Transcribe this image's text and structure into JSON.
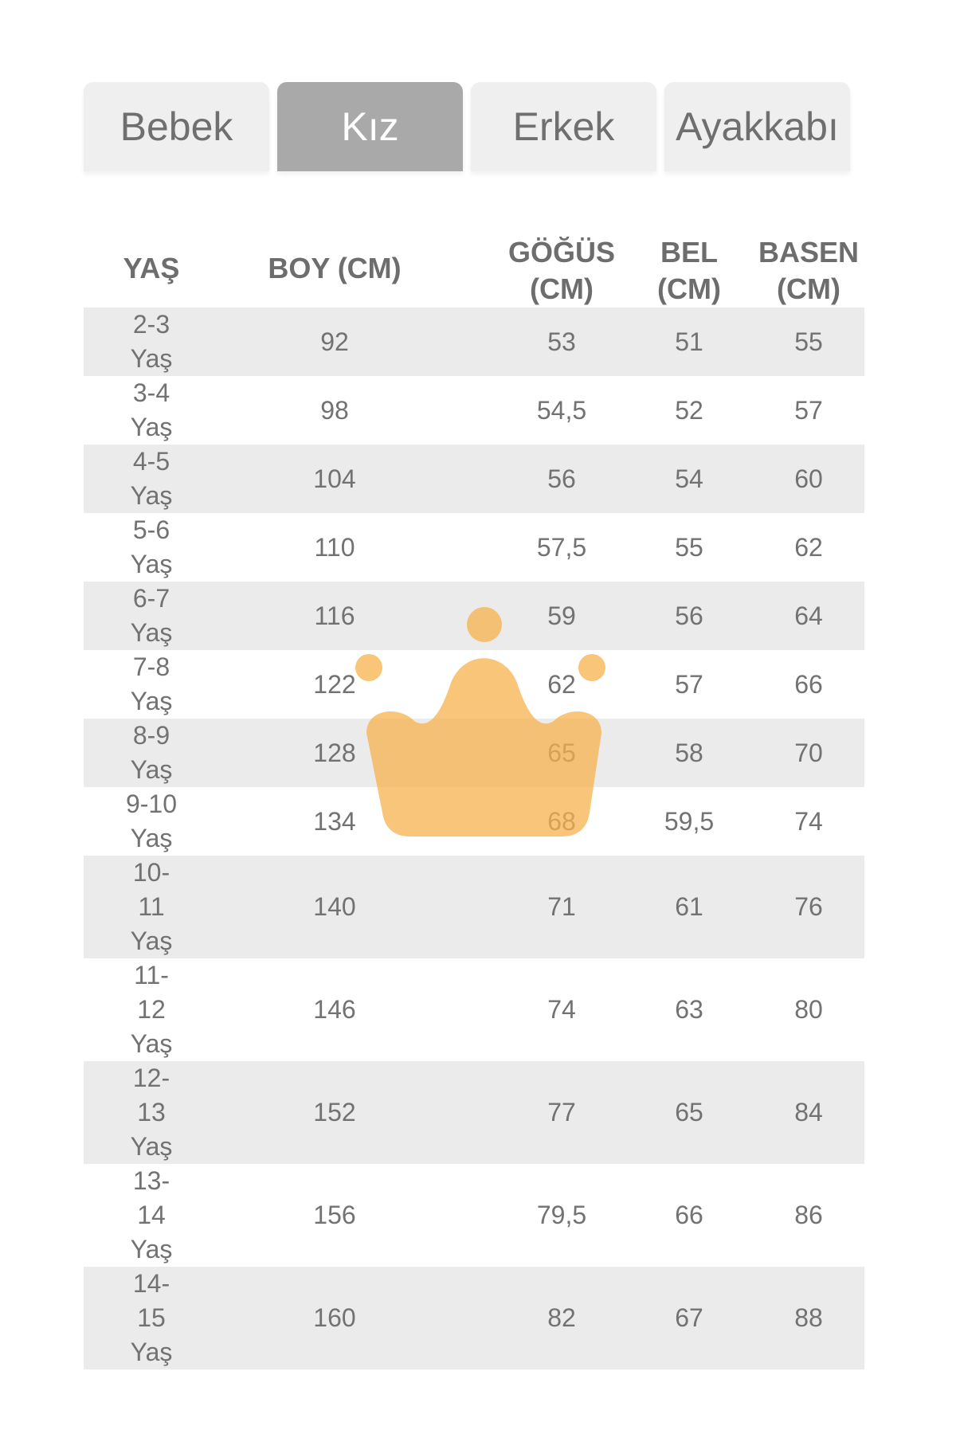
{
  "tabs": [
    {
      "label": "Bebek",
      "active": false
    },
    {
      "label": "Kız",
      "active": true
    },
    {
      "label": "Erkek",
      "active": false
    },
    {
      "label": "Ayakkabı",
      "active": false
    }
  ],
  "table": {
    "headers": {
      "yas": "YAŞ",
      "boy": "BOY (CM)",
      "gogus_line1": "GÖĞÜS",
      "gogus_line2": "(CM)",
      "bel_line1": "BEL",
      "bel_line2": "(CM)",
      "basen_line1": "BASEN",
      "basen_line2": "(CM)"
    },
    "rows": [
      {
        "age_lines": [
          "2-3",
          "Yaş"
        ],
        "boy": "92",
        "gogus": "53",
        "bel": "51",
        "basen": "55"
      },
      {
        "age_lines": [
          "3-4",
          "Yaş"
        ],
        "boy": "98",
        "gogus": "54,5",
        "bel": "52",
        "basen": "57"
      },
      {
        "age_lines": [
          "4-5",
          "Yaş"
        ],
        "boy": "104",
        "gogus": "56",
        "bel": "54",
        "basen": "60"
      },
      {
        "age_lines": [
          "5-6",
          "Yaş"
        ],
        "boy": "110",
        "gogus": "57,5",
        "bel": "55",
        "basen": "62"
      },
      {
        "age_lines": [
          "6-7",
          "Yaş"
        ],
        "boy": "116",
        "gogus": "59",
        "bel": "56",
        "basen": "64"
      },
      {
        "age_lines": [
          "7-8",
          "Yaş"
        ],
        "boy": "122",
        "gogus": "62",
        "bel": "57",
        "basen": "66"
      },
      {
        "age_lines": [
          "8-9",
          "Yaş"
        ],
        "boy": "128",
        "gogus": "65",
        "bel": "58",
        "basen": "70"
      },
      {
        "age_lines": [
          "9-10",
          "Yaş"
        ],
        "boy": "134",
        "gogus": "68",
        "bel": "59,5",
        "basen": "74"
      },
      {
        "age_lines": [
          "10-",
          "11",
          "Yaş"
        ],
        "boy": "140",
        "gogus": "71",
        "bel": "61",
        "basen": "76"
      },
      {
        "age_lines": [
          "11-",
          "12",
          "Yaş"
        ],
        "boy": "146",
        "gogus": "74",
        "bel": "63",
        "basen": "80"
      },
      {
        "age_lines": [
          "12-",
          "13",
          "Yaş"
        ],
        "boy": "152",
        "gogus": "77",
        "bel": "65",
        "basen": "84"
      },
      {
        "age_lines": [
          "13-",
          "14",
          "Yaş"
        ],
        "boy": "156",
        "gogus": "79,5",
        "bel": "66",
        "basen": "86"
      },
      {
        "age_lines": [
          "14-",
          "15",
          "Yaş"
        ],
        "boy": "160",
        "gogus": "82",
        "bel": "67",
        "basen": "88"
      }
    ]
  },
  "watermark": {
    "icon": "crown-logo",
    "color": "#f6b24d"
  },
  "colors": {
    "active_tab": "#a9a9a9",
    "inactive_tab": "#efefef",
    "row_shade": "#ebebeb"
  }
}
